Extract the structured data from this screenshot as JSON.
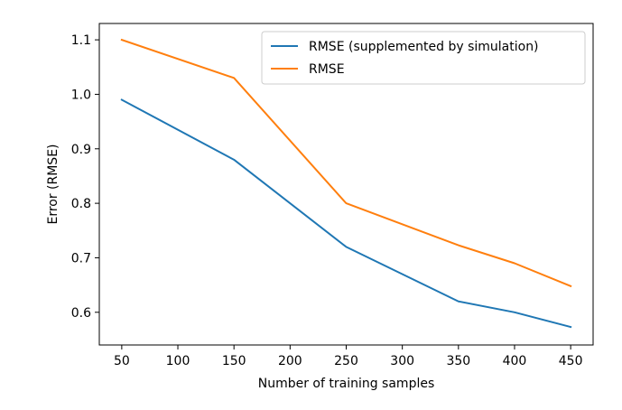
{
  "chart_data": {
    "type": "line",
    "xlabel": "Number of training samples",
    "ylabel": "Error (RMSE)",
    "xlim": [
      30,
      470
    ],
    "ylim": [
      0.54,
      1.13
    ],
    "xticks": [
      50,
      100,
      150,
      200,
      250,
      300,
      350,
      400,
      450
    ],
    "yticks": [
      0.6,
      0.7,
      0.8,
      0.9,
      1.0,
      1.1
    ],
    "ytick_labels": [
      "0.6",
      "0.7",
      "0.8",
      "0.9",
      "1.0",
      "1.1"
    ],
    "grid": false,
    "legend": "top-right",
    "series": [
      {
        "name": "RMSE (supplemented by simulation)",
        "color": "#1f77b4",
        "x": [
          50,
          150,
          250,
          350,
          400,
          450
        ],
        "y": [
          0.99,
          0.88,
          0.72,
          0.62,
          0.6,
          0.573
        ]
      },
      {
        "name": "RMSE",
        "color": "#ff7f0e",
        "x": [
          50,
          150,
          250,
          350,
          400,
          450
        ],
        "y": [
          1.1,
          1.03,
          0.8,
          0.723,
          0.69,
          0.648
        ]
      }
    ]
  }
}
